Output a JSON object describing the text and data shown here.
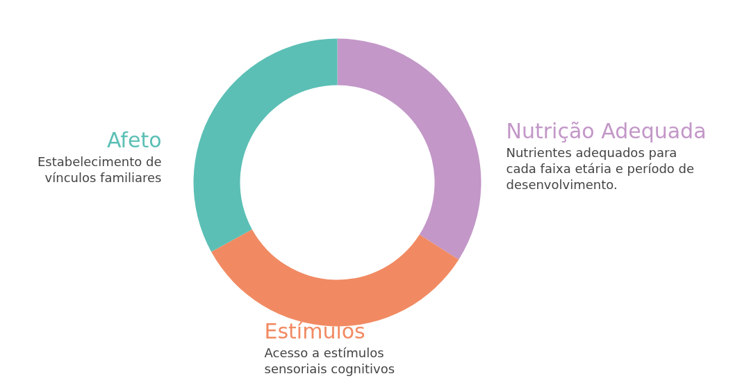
{
  "chart_data": {
    "type": "donut",
    "categories": [
      "Nutrição Adequada",
      "Estímulos",
      "Afeto"
    ],
    "values": [
      34,
      33,
      33
    ],
    "colors": [
      "#c397c8",
      "#f18a62",
      "#5bbfb5"
    ],
    "annotations": [
      "Nutrientes adequados para\ncada faixa etária e período de\ndesenvolvimento.",
      "Acesso a estímulos\nsensoriais cognitivos",
      "Estabelecimento de\nvínculos familiares"
    ]
  }
}
